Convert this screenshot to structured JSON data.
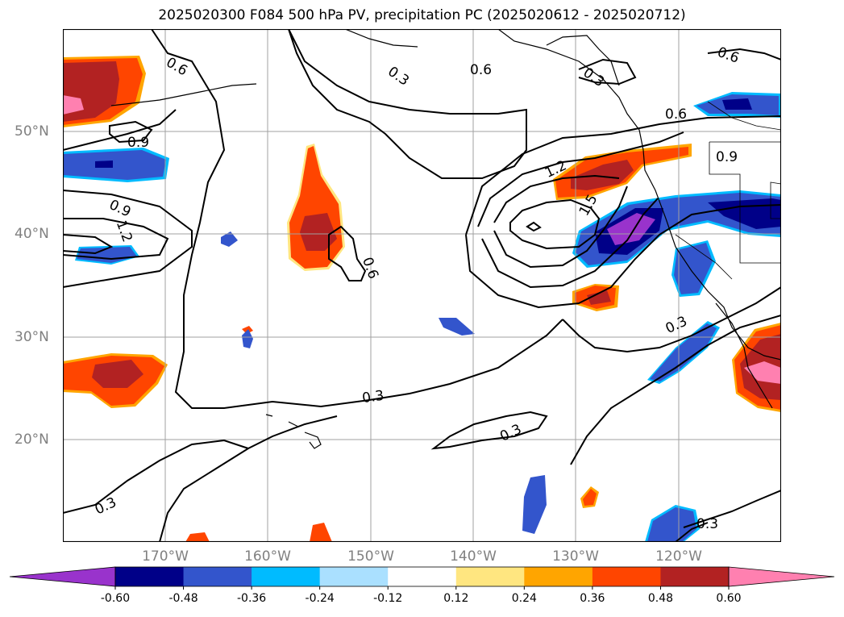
{
  "title": "2025020300 F084 500 hPa PV, precipitation PC (2025020612 - 2025020712)",
  "map": {
    "projection": "lat-lon",
    "lon_range_deg": [
      -180,
      -110
    ],
    "lat_range_deg": [
      10,
      60
    ],
    "lon_ticks": [
      "170°W",
      "160°W",
      "150°W",
      "140°W",
      "130°W",
      "120°W"
    ],
    "lat_ticks": [
      "50°N",
      "40°N",
      "30°N",
      "20°N"
    ],
    "gridlines": true,
    "coastlines": true,
    "contour_field": "500 hPa PV",
    "contour_labels": [
      "0.3",
      "0.6",
      "0.9",
      "1.2",
      "1.5"
    ],
    "shaded_field": "precipitation PC"
  },
  "colorbar": {
    "extend": "both",
    "tick_labels": [
      "-0.60",
      "-0.48",
      "-0.36",
      "-0.24",
      "-0.12",
      "0.12",
      "0.24",
      "0.36",
      "0.48",
      "0.60"
    ],
    "colors": [
      "#9933cc",
      "#000088",
      "#3355cc",
      "#00bbff",
      "#aae0ff",
      "#ffffff",
      "#ffe680",
      "#ffa500",
      "#ff4500",
      "#b22222",
      "#ff80b0"
    ]
  },
  "colors": {
    "contour": "#000000",
    "grid": "#a0a0a0",
    "axis_label": "#808080"
  }
}
